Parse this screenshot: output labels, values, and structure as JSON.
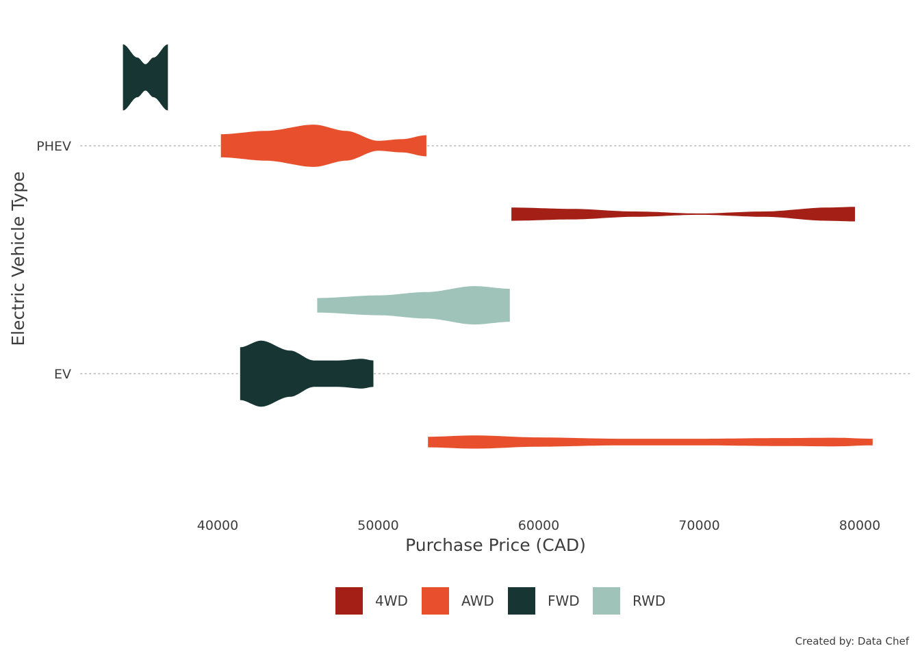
{
  "chart_data": {
    "type": "violin",
    "orientation": "horizontal",
    "xlabel": "Purchase Price (CAD)",
    "ylabel": "Electric Vehicle Type",
    "categories": [
      "EV",
      "PHEV"
    ],
    "x_ticks": [
      40000,
      50000,
      60000,
      70000,
      80000
    ],
    "xlim": [
      31500,
      83000
    ],
    "grid": "dotted horizontal at categories",
    "legend_position": "bottom",
    "caption": "Created by: Data Chef",
    "legend": [
      {
        "name": "4WD",
        "color": "#a41f16"
      },
      {
        "name": "AWD",
        "color": "#e84f2c"
      },
      {
        "name": "FWD",
        "color": "#163533"
      },
      {
        "name": "RWD",
        "color": "#9fc3b8"
      }
    ],
    "series": [
      {
        "category": "EV",
        "drive": "AWD",
        "color": "#e84f2c",
        "offset": -0.3,
        "range": [
          53100,
          80800
        ],
        "profile": [
          [
            53100,
            0.16
          ],
          [
            56000,
            0.2
          ],
          [
            60000,
            0.14
          ],
          [
            65000,
            0.1
          ],
          [
            70000,
            0.1
          ],
          [
            75000,
            0.12
          ],
          [
            78500,
            0.13
          ],
          [
            80800,
            0.1
          ]
        ]
      },
      {
        "category": "EV",
        "drive": "FWD",
        "color": "#163533",
        "offset": 0.0,
        "range": [
          41400,
          49700
        ],
        "profile": [
          [
            41400,
            0.8
          ],
          [
            42700,
            1.0
          ],
          [
            44500,
            0.7
          ],
          [
            46000,
            0.4
          ],
          [
            47500,
            0.4
          ],
          [
            49000,
            0.45
          ],
          [
            49700,
            0.4
          ]
        ]
      },
      {
        "category": "EV",
        "drive": "RWD",
        "color": "#9fc3b8",
        "offset": 0.3,
        "range": [
          46200,
          58200
        ],
        "profile": [
          [
            46200,
            0.22
          ],
          [
            50000,
            0.3
          ],
          [
            53000,
            0.4
          ],
          [
            56000,
            0.58
          ],
          [
            58200,
            0.5
          ]
        ]
      },
      {
        "category": "PHEV",
        "drive": "4WD",
        "color": "#a41f16",
        "offset": -0.3,
        "range": [
          58300,
          79700
        ],
        "profile": [
          [
            58300,
            0.2
          ],
          [
            62000,
            0.16
          ],
          [
            66000,
            0.08
          ],
          [
            70000,
            0.02
          ],
          [
            74000,
            0.08
          ],
          [
            78000,
            0.2
          ],
          [
            79700,
            0.22
          ]
        ]
      },
      {
        "category": "PHEV",
        "drive": "AWD",
        "color": "#e84f2c",
        "offset": 0.0,
        "range": [
          40200,
          53000
        ],
        "profile": [
          [
            40200,
            0.35
          ],
          [
            43000,
            0.45
          ],
          [
            46000,
            0.64
          ],
          [
            48000,
            0.45
          ],
          [
            50000,
            0.15
          ],
          [
            51500,
            0.2
          ],
          [
            53000,
            0.32
          ]
        ]
      },
      {
        "category": "PHEV",
        "drive": "FWD",
        "color": "#163533",
        "offset": 0.3,
        "range": [
          34100,
          36900
        ],
        "profile": [
          [
            34100,
            1.0
          ],
          [
            35000,
            0.6
          ],
          [
            35500,
            0.4
          ],
          [
            36000,
            0.6
          ],
          [
            36900,
            1.0
          ]
        ]
      }
    ]
  }
}
